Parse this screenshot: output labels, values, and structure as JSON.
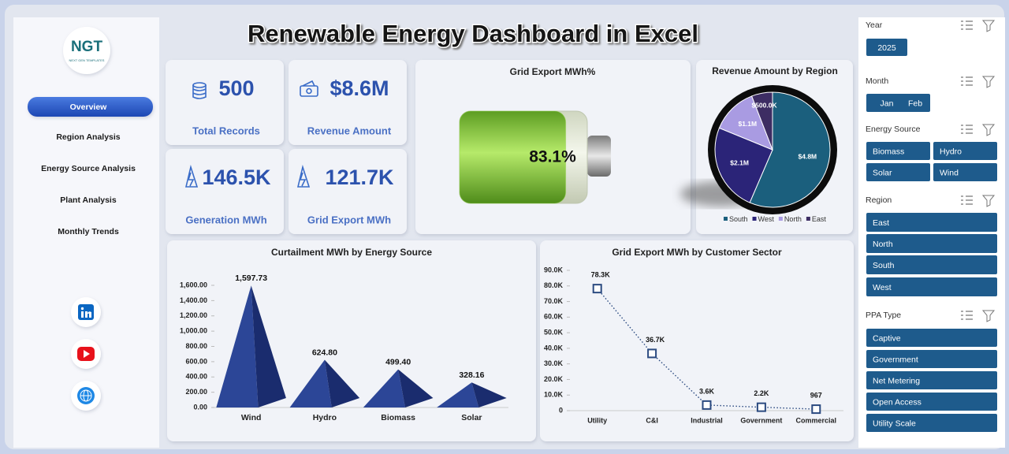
{
  "header": {
    "title": "Renewable Energy Dashboard in Excel"
  },
  "logo": {
    "text": "NGT",
    "tagline": "NEXT GEN TEMPLATES"
  },
  "nav": [
    "Overview",
    "Region Analysis",
    "Energy Source Analysis",
    "Plant Analysis",
    "Monthly Trends"
  ],
  "kpis": [
    {
      "value": "500",
      "label": "Total Records"
    },
    {
      "value": "$8.6M",
      "label": "Revenue Amount"
    },
    {
      "value": "146.5K",
      "label": "Generation MWh"
    },
    {
      "value": "121.7K",
      "label": "Grid Export MWh"
    }
  ],
  "slicers": [
    {
      "title": "Year",
      "items": [
        "2025"
      ]
    },
    {
      "title": "Month",
      "items": [
        "Jan",
        "Feb"
      ]
    },
    {
      "title": "Energy Source",
      "items": [
        "Biomass",
        "Hydro",
        "Solar",
        "Wind"
      ]
    },
    {
      "title": "Region",
      "items": [
        "East",
        "North",
        "South",
        "West"
      ]
    },
    {
      "title": "PPA Type",
      "items": [
        "Captive",
        "Government",
        "Net Metering",
        "Open Access",
        "Utility Scale"
      ]
    }
  ],
  "chart_data": [
    {
      "type": "battery",
      "title": "Grid Export MWh%",
      "values": [
        83.1
      ],
      "value_labels": [
        "83.1%"
      ],
      "color": "#8fd444"
    },
    {
      "type": "pie",
      "title": "Revenue Amount by Region",
      "categories": [
        "South",
        "West",
        "North",
        "East"
      ],
      "values": [
        4800000,
        2100000,
        1100000,
        500000
      ],
      "value_labels": [
        "$4.8M",
        "$2.1M",
        "$1.1M",
        "$500.0K"
      ],
      "colors": [
        "#1b5f7d",
        "#2b2478",
        "#a99be2",
        "#3d2d63"
      ]
    },
    {
      "type": "pyramid",
      "title": "Curtailment MWh by Energy Source",
      "categories": [
        "Wind",
        "Hydro",
        "Biomass",
        "Solar"
      ],
      "values": [
        1597.73,
        624.8,
        499.4,
        328.16
      ],
      "value_labels": [
        "1,597.73",
        "624.80",
        "499.40",
        "328.16"
      ],
      "color": "#2c4697",
      "ylim": [
        0,
        1600
      ],
      "yticks": [
        {
          "value": 0,
          "label": "0.00"
        },
        {
          "value": 200,
          "label": "200.00"
        },
        {
          "value": 400,
          "label": "400.00"
        },
        {
          "value": 600,
          "label": "600.00"
        },
        {
          "value": 800,
          "label": "800.00"
        },
        {
          "value": 1000,
          "label": "1,000.00"
        },
        {
          "value": 1200,
          "label": "1,200.00"
        },
        {
          "value": 1400,
          "label": "1,400.00"
        },
        {
          "value": 1600,
          "label": "1,600.00"
        }
      ]
    },
    {
      "type": "line",
      "title": "Grid Export MWh by Customer Sector",
      "categories": [
        "Utility",
        "C&I",
        "Industrial",
        "Government",
        "Commercial"
      ],
      "values": [
        78300,
        36700,
        3600,
        2200,
        967
      ],
      "value_labels": [
        "78.3K",
        "36.7K",
        "3.6K",
        "2.2K",
        "967"
      ],
      "color": "#2b4a80",
      "ylim": [
        0,
        90000
      ],
      "yticks": [
        0,
        {
          "value": 10000,
          "label": "10.0K"
        },
        {
          "value": 20000,
          "label": "20.0K"
        },
        {
          "value": 30000,
          "label": "30.0K"
        },
        {
          "value": 40000,
          "label": "40.0K"
        },
        {
          "value": 50000,
          "label": "50.0K"
        },
        {
          "value": 60000,
          "label": "60.0K"
        },
        {
          "value": 70000,
          "label": "70.0K"
        },
        {
          "value": 80000,
          "label": "80.0K"
        },
        {
          "value": 90000,
          "label": "90.0K"
        }
      ]
    }
  ]
}
